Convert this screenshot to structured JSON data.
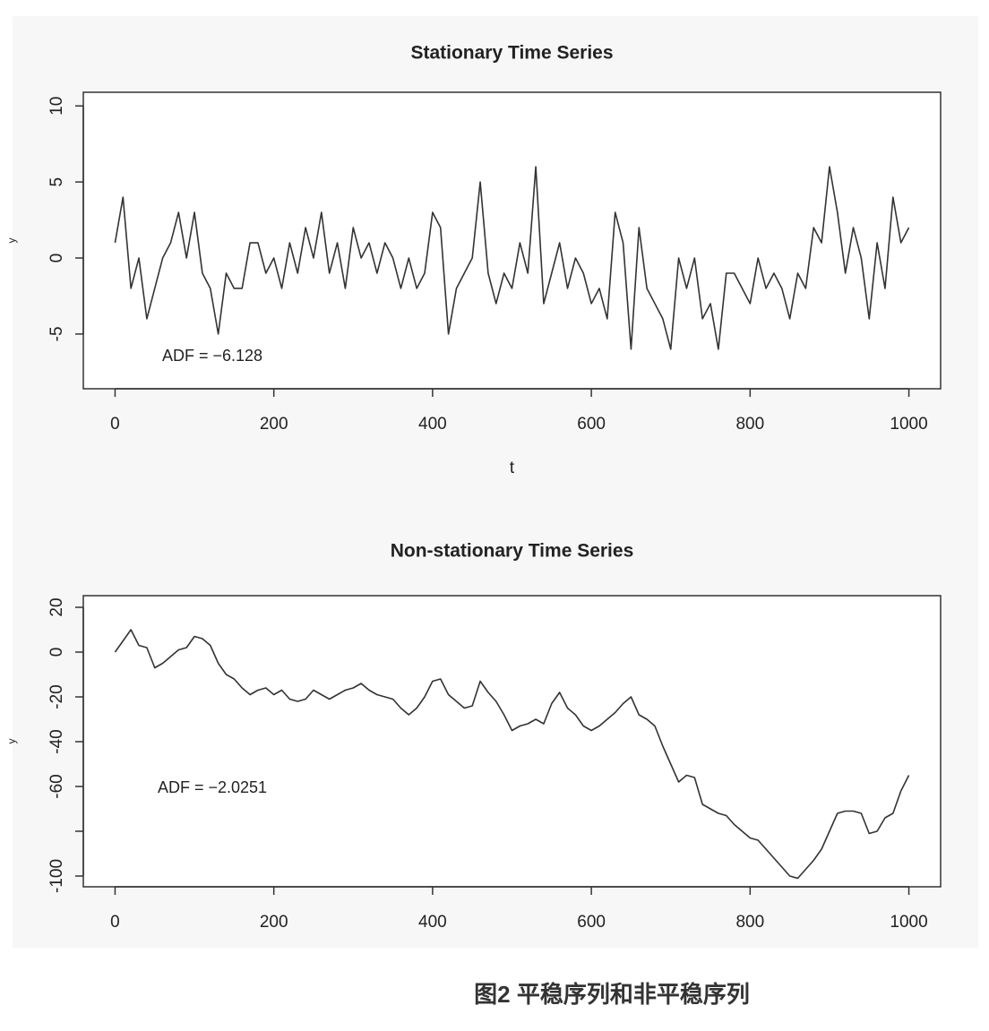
{
  "chart_data": [
    {
      "type": "line",
      "title": "Stationary Time Series",
      "xlabel": "t",
      "ylabel": "y",
      "annotation": "ADF = −6.128",
      "xlim": [
        -40,
        1040
      ],
      "xticks": [
        0,
        200,
        400,
        600,
        800,
        1000
      ],
      "ylim": [
        -8.6,
        10.9
      ],
      "yticks": [
        -5,
        0,
        5,
        10
      ],
      "x": [
        0,
        10,
        20,
        30,
        40,
        50,
        60,
        70,
        80,
        90,
        100,
        110,
        120,
        130,
        140,
        150,
        160,
        170,
        180,
        190,
        200,
        210,
        220,
        230,
        240,
        250,
        260,
        270,
        280,
        290,
        300,
        310,
        320,
        330,
        340,
        350,
        360,
        370,
        380,
        390,
        400,
        410,
        420,
        430,
        440,
        450,
        460,
        470,
        480,
        490,
        500,
        510,
        520,
        530,
        540,
        550,
        560,
        570,
        580,
        590,
        600,
        610,
        620,
        630,
        640,
        650,
        660,
        670,
        680,
        690,
        700,
        710,
        720,
        730,
        740,
        750,
        760,
        770,
        780,
        790,
        800,
        810,
        820,
        830,
        840,
        850,
        860,
        870,
        880,
        890,
        900,
        910,
        920,
        930,
        940,
        950,
        960,
        970,
        980,
        990,
        1000
      ],
      "series": [
        {
          "name": "y",
          "color": "#333333",
          "values": [
            1,
            4,
            -2,
            0,
            -4,
            -2,
            0,
            1,
            3,
            0,
            3,
            -1,
            -2,
            -5,
            -1,
            -2,
            -2,
            1,
            1,
            -1,
            0,
            -2,
            1,
            -1,
            2,
            0,
            3,
            -1,
            1,
            -2,
            2,
            0,
            1,
            -1,
            1,
            0,
            -2,
            0,
            -2,
            -1,
            3,
            2,
            -5,
            -2,
            -1,
            0,
            5,
            -1,
            -3,
            -1,
            -2,
            1,
            -1,
            6,
            -3,
            -1,
            1,
            -2,
            0,
            -1,
            -3,
            -2,
            -4,
            3,
            1,
            -6,
            2,
            -2,
            -3,
            -4,
            -6,
            0,
            -2,
            0,
            -4,
            -3,
            -6,
            -1,
            -1,
            -2,
            -3,
            0,
            -2,
            -1,
            -2,
            -4,
            -1,
            -2,
            2,
            1,
            6,
            3,
            -1,
            2,
            0,
            -4,
            1,
            -2,
            4,
            1,
            2
          ]
        }
      ]
    },
    {
      "type": "line",
      "title": "Non-stationary Time Series",
      "ylabel": "y",
      "annotation": "ADF = −2.0251",
      "xlim": [
        -40,
        1040
      ],
      "xticks": [
        0,
        200,
        400,
        600,
        800,
        1000
      ],
      "ylim": [
        -104.8,
        25.2
      ],
      "yticks": [
        20,
        0,
        -20,
        -40,
        -60,
        {
          "value": -80,
          "label": null
        },
        -100
      ],
      "x": [
        0,
        10,
        20,
        30,
        40,
        50,
        60,
        70,
        80,
        90,
        100,
        110,
        120,
        130,
        140,
        150,
        160,
        170,
        180,
        190,
        200,
        210,
        220,
        230,
        240,
        250,
        260,
        270,
        280,
        290,
        300,
        310,
        320,
        330,
        340,
        350,
        360,
        370,
        380,
        390,
        400,
        410,
        420,
        430,
        440,
        450,
        460,
        470,
        480,
        490,
        500,
        510,
        520,
        530,
        540,
        550,
        560,
        570,
        580,
        590,
        600,
        610,
        620,
        630,
        640,
        650,
        660,
        670,
        680,
        690,
        700,
        710,
        720,
        730,
        740,
        750,
        760,
        770,
        780,
        790,
        800,
        810,
        820,
        830,
        840,
        850,
        860,
        870,
        880,
        890,
        900,
        910,
        920,
        930,
        940,
        950,
        960,
        970,
        980,
        990,
        1000
      ],
      "series": [
        {
          "name": "y",
          "color": "#333333",
          "values": [
            0,
            5,
            10,
            3,
            2,
            -7,
            -5,
            -2,
            1,
            2,
            7,
            6,
            3,
            -5,
            -10,
            -12,
            -16,
            -19,
            -17,
            -16,
            -19,
            -17,
            -21,
            -22,
            -21,
            -17,
            -19,
            -21,
            -19,
            -17,
            -16,
            -14,
            -17,
            -19,
            -20,
            -21,
            -25,
            -28,
            -25,
            -20,
            -13,
            -12,
            -19,
            -22,
            -25,
            -24,
            -13,
            -18,
            -22,
            -28,
            -35,
            -33,
            -32,
            -30,
            -32,
            -23,
            -18,
            -25,
            -28,
            -33,
            -35,
            -33,
            -30,
            -27,
            -23,
            -20,
            -28,
            -30,
            -33,
            -42,
            -50,
            -58,
            -55,
            -56,
            -68,
            -70,
            -72,
            -73,
            -77,
            -80,
            -83,
            -84,
            -88,
            -92,
            -96,
            -100,
            -101,
            -97,
            -93,
            -88,
            -80,
            -72,
            -71,
            -71,
            -72,
            -81,
            -80,
            -74,
            -72,
            -62,
            -55
          ]
        }
      ]
    }
  ],
  "caption": "图2  平稳序列和非平稳序列"
}
